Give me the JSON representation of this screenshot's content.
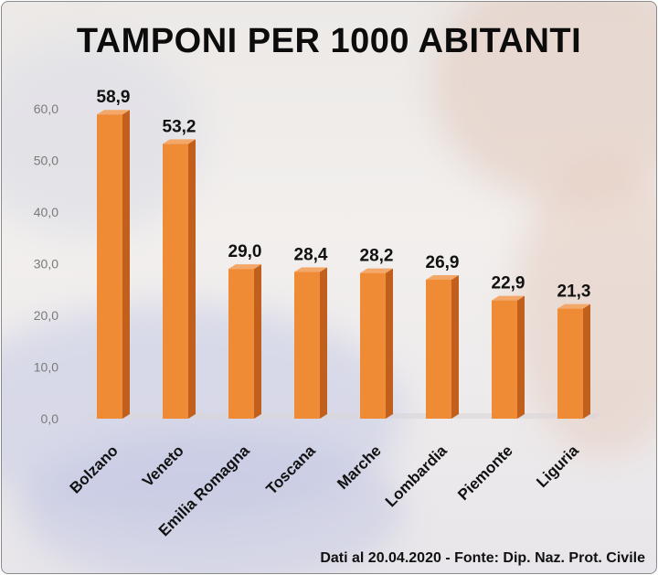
{
  "chart_data": {
    "type": "bar",
    "title": "TAMPONI PER 1000 ABITANTI",
    "categories": [
      "Bolzano",
      "Veneto",
      "Emilia Romagna",
      "Toscana",
      "Marche",
      "Lombardia",
      "Piemonte",
      "Liguria"
    ],
    "values": [
      58.9,
      53.2,
      29.0,
      28.4,
      28.2,
      26.9,
      22.9,
      21.3
    ],
    "value_labels": [
      "58,9",
      "53,2",
      "29,0",
      "28,4",
      "28,2",
      "26,9",
      "22,9",
      "21,3"
    ],
    "y_ticks": [
      0,
      10,
      20,
      30,
      40,
      50,
      60
    ],
    "y_tick_labels": [
      "0,0",
      "10,0",
      "20,0",
      "30,0",
      "40,0",
      "50,0",
      "60,0"
    ],
    "ylim": [
      0,
      60
    ],
    "grid": false,
    "legend": "none",
    "bar_color": "#ef8a35",
    "source_note": "Dati al 20.04.2020 - Fonte: Dip. Naz. Prot. Civile"
  }
}
